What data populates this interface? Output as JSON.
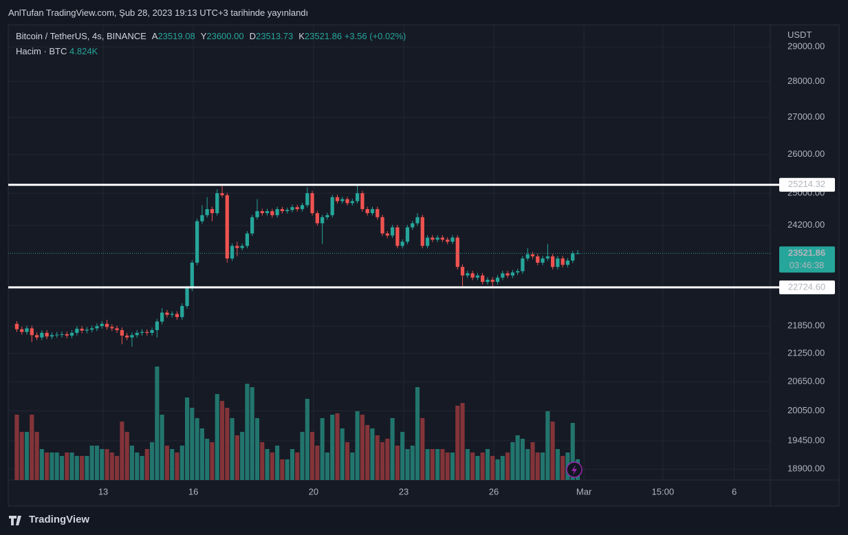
{
  "header": {
    "title": "AnlTufan TradingView.com, Şub 28, 2023 19:13 UTC+3 tarihinde yayınlandı"
  },
  "footer": {
    "brand": "TradingView"
  },
  "chart_data": {
    "type": "candlestick",
    "legend": {
      "symbol": "Bitcoin / TetherUS, 4s, BINANCE",
      "fields": [
        {
          "key": "A",
          "text": "23519.08"
        },
        {
          "key": "Y",
          "text": "23600.00"
        },
        {
          "key": "D",
          "text": "23513.73"
        },
        {
          "key": "K",
          "text": "23521.86"
        }
      ],
      "change": "+3.56 (+0.02%)",
      "volume_name": "Hacim · BTC",
      "volume_text": "4.824K"
    },
    "y_unit": "USDT",
    "x": [
      10.125,
      10.292,
      10.458,
      10.625,
      10.792,
      10.958,
      11.125,
      11.292,
      11.458,
      11.625,
      11.792,
      11.958,
      12.125,
      12.292,
      12.458,
      12.625,
      12.792,
      12.958,
      13.125,
      13.292,
      13.458,
      13.625,
      13.792,
      13.958,
      14.125,
      14.292,
      14.458,
      14.625,
      14.792,
      14.958,
      15.125,
      15.292,
      15.458,
      15.625,
      15.792,
      15.958,
      16.125,
      16.292,
      16.458,
      16.625,
      16.792,
      16.958,
      17.125,
      17.292,
      17.458,
      17.625,
      17.792,
      17.958,
      18.125,
      18.292,
      18.458,
      18.625,
      18.792,
      18.958,
      19.125,
      19.292,
      19.458,
      19.625,
      19.792,
      19.958,
      20.125,
      20.292,
      20.458,
      20.625,
      20.792,
      20.958,
      21.125,
      21.292,
      21.458,
      21.625,
      21.792,
      21.958,
      22.125,
      22.292,
      22.458,
      22.625,
      22.792,
      22.958,
      23.125,
      23.292,
      23.458,
      23.625,
      23.792,
      23.958,
      24.125,
      24.292,
      24.458,
      24.625,
      24.792,
      24.958,
      25.125,
      25.292,
      25.458,
      25.625,
      25.792,
      25.958,
      26.125,
      26.292,
      26.458,
      26.625,
      26.792,
      26.958,
      27.125,
      27.292,
      27.458,
      27.625,
      27.792,
      27.958,
      28.125,
      28.292,
      28.458,
      28.625,
      28.792
    ],
    "open": [
      21900,
      21780,
      21720,
      21800,
      21650,
      21600,
      21700,
      21620,
      21650,
      21660,
      21670,
      21640,
      21700,
      21790,
      21750,
      21770,
      21800,
      21850,
      21900,
      21830,
      21800,
      21760,
      21640,
      21600,
      21650,
      21700,
      21720,
      21700,
      21760,
      21950,
      22150,
      22100,
      22120,
      22050,
      22300,
      22700,
      23300,
      24300,
      24450,
      24600,
      24500,
      25000,
      24950,
      23400,
      23700,
      23650,
      23700,
      24000,
      24400,
      24550,
      24500,
      24550,
      24450,
      24600,
      24550,
      24580,
      24650,
      24600,
      24700,
      25000,
      24500,
      24250,
      24400,
      24450,
      24900,
      24800,
      24850,
      24750,
      24800,
      25000,
      24600,
      24500,
      24600,
      24400,
      24000,
      23950,
      24150,
      23700,
      23800,
      24150,
      24250,
      24400,
      23700,
      23900,
      23850,
      23900,
      23850,
      23800,
      23900,
      23200,
      23000,
      23050,
      22950,
      23000,
      22850,
      22900,
      22850,
      22950,
      23050,
      23000,
      23070,
      23100,
      23400,
      23500,
      23450,
      23300,
      23400,
      23450,
      23200,
      23400,
      23250,
      23350,
      23519.08
    ],
    "high": [
      21960,
      21840,
      21860,
      21860,
      21710,
      21760,
      21760,
      21710,
      21720,
      21730,
      21730,
      21760,
      21850,
      21850,
      21830,
      21860,
      21910,
      21960,
      21990,
      21890,
      21860,
      21820,
      21700,
      21710,
      21760,
      21780,
      21780,
      21820,
      22010,
      22250,
      22210,
      22180,
      22180,
      22360,
      22760,
      23360,
      24360,
      24700,
      24900,
      24660,
      25100,
      25214,
      25010,
      23760,
      23800,
      23760,
      24060,
      24460,
      24850,
      24610,
      24610,
      24610,
      24660,
      24660,
      24640,
      24710,
      24710,
      24760,
      25150,
      25060,
      24560,
      24460,
      24510,
      24960,
      24960,
      24910,
      24910,
      24860,
      25200,
      25060,
      24660,
      24660,
      24660,
      24460,
      24060,
      24210,
      24210,
      23860,
      24210,
      24310,
      24500,
      24460,
      23960,
      23960,
      23960,
      23960,
      23910,
      23960,
      23960,
      23260,
      23110,
      23110,
      23060,
      23060,
      22960,
      22960,
      23010,
      23110,
      23110,
      23130,
      23160,
      23460,
      23650,
      23560,
      23510,
      23460,
      23750,
      23510,
      23460,
      23460,
      23410,
      23580,
      23600
    ],
    "low": [
      21720,
      21660,
      21660,
      21500,
      21540,
      21540,
      21560,
      21560,
      21590,
      21600,
      21580,
      21580,
      21640,
      21690,
      21690,
      21710,
      21740,
      21790,
      21770,
      21740,
      21700,
      21450,
      21540,
      21400,
      21590,
      21640,
      21640,
      21640,
      21600,
      21890,
      22040,
      22040,
      21990,
      21990,
      22240,
      22640,
      23240,
      24240,
      24390,
      24300,
      24440,
      24890,
      23300,
      23340,
      23450,
      23590,
      23640,
      23940,
      24340,
      24440,
      24440,
      24390,
      24390,
      24490,
      24490,
      24520,
      24540,
      24540,
      24640,
      24440,
      24190,
      23750,
      24340,
      24390,
      24740,
      24740,
      24690,
      24690,
      24740,
      24540,
      24440,
      24440,
      24340,
      23940,
      23890,
      23890,
      23640,
      23640,
      23740,
      24090,
      24190,
      23640,
      23640,
      23790,
      23790,
      23790,
      23740,
      23740,
      23140,
      22750,
      22940,
      22890,
      22890,
      22790,
      22790,
      22700,
      22790,
      22890,
      22940,
      22940,
      23010,
      23040,
      23340,
      23390,
      23240,
      23240,
      23340,
      23140,
      23140,
      23190,
      23190,
      23290,
      23513.73
    ],
    "close": [
      21780,
      21720,
      21800,
      21650,
      21600,
      21700,
      21620,
      21650,
      21660,
      21670,
      21640,
      21700,
      21790,
      21750,
      21770,
      21800,
      21850,
      21900,
      21830,
      21800,
      21760,
      21640,
      21600,
      21650,
      21700,
      21720,
      21700,
      21760,
      21950,
      22150,
      22100,
      22120,
      22050,
      22300,
      22700,
      23300,
      24300,
      24450,
      24600,
      24500,
      25000,
      24950,
      23400,
      23700,
      23650,
      23700,
      24000,
      24400,
      24550,
      24500,
      24550,
      24450,
      24600,
      24550,
      24580,
      24650,
      24600,
      24700,
      25000,
      24500,
      24250,
      24400,
      24450,
      24900,
      24800,
      24850,
      24750,
      24800,
      25000,
      24600,
      24500,
      24600,
      24400,
      24000,
      23950,
      24150,
      23700,
      23800,
      24150,
      24250,
      24400,
      23700,
      23900,
      23850,
      23900,
      23850,
      23800,
      23900,
      23200,
      23000,
      23050,
      22950,
      23000,
      22850,
      22900,
      22850,
      22950,
      23050,
      23000,
      23070,
      23100,
      23400,
      23500,
      23450,
      23300,
      23400,
      23450,
      23200,
      23400,
      23250,
      23350,
      23518.3,
      23521.86
    ],
    "volume": [
      15200,
      11200,
      11200,
      15200,
      11200,
      7200,
      6400,
      6400,
      6400,
      5600,
      6400,
      6400,
      5600,
      5600,
      5600,
      8000,
      8000,
      7200,
      7200,
      6400,
      5600,
      13600,
      11200,
      8000,
      6400,
      5600,
      7200,
      8800,
      26400,
      15200,
      8000,
      7200,
      6400,
      8000,
      19200,
      16800,
      14400,
      12000,
      9600,
      8800,
      20000,
      18400,
      16800,
      14400,
      10400,
      11200,
      22400,
      21600,
      14400,
      8800,
      7200,
      6400,
      8000,
      4800,
      4800,
      7200,
      6400,
      11200,
      18880,
      11200,
      8000,
      14400,
      6400,
      15200,
      15520,
      12000,
      8800,
      6400,
      16000,
      15200,
      12800,
      12000,
      10400,
      8800,
      9600,
      14400,
      8000,
      11200,
      7200,
      8000,
      21600,
      14400,
      7200,
      7200,
      7200,
      7200,
      6400,
      6400,
      17280,
      17920,
      7200,
      6400,
      5600,
      6400,
      7200,
      5600,
      4800,
      5600,
      6400,
      8800,
      10400,
      9600,
      7200,
      8800,
      6400,
      6400,
      16000,
      13600,
      7200,
      5600,
      6400,
      13280,
      4824
    ],
    "up_color": "#26a69a",
    "down_color": "#ef5350",
    "volume_up_color": "#22756d",
    "volume_down_color": "#833439",
    "xlim": [
      9.84,
      35.2
    ],
    "xticks": [
      13,
      16,
      20,
      23,
      26,
      {
        "value": 29,
        "label": "Mar"
      },
      {
        "value": 31.625,
        "label": "15:00"
      },
      {
        "value": 34,
        "label": "6"
      }
    ],
    "ylim": [
      18693,
      29656
    ],
    "log": true,
    "yticks": [
      {
        "value": 18900,
        "label": "18900.00"
      },
      {
        "value": 19450,
        "label": "19450.00"
      },
      {
        "value": 20050,
        "label": "20050.00"
      },
      {
        "value": 20650,
        "label": "20650.00"
      },
      {
        "value": 21250,
        "label": "21250.00"
      },
      {
        "value": 21850,
        "label": "21850.00"
      },
      {
        "value": 24200,
        "label": "24200.00"
      },
      {
        "value": 25000,
        "label": "25000.00"
      },
      {
        "value": 26000,
        "label": "26000.00"
      },
      {
        "value": 27000,
        "label": "27000.00"
      },
      {
        "value": 28000,
        "label": "28000.00"
      },
      {
        "value": 29000,
        "label": "29000.00"
      }
    ],
    "volume_ylim": [
      0,
      60000
    ],
    "hlines": [
      {
        "value": 25214.32,
        "label": "25214.32"
      },
      {
        "value": 22724.6,
        "label": "22724.60"
      }
    ],
    "hline_color": "#ffffff",
    "last_price": {
      "value": 23521.86,
      "label": "23521.86",
      "countdown": "03:46:38"
    },
    "grid": true
  }
}
